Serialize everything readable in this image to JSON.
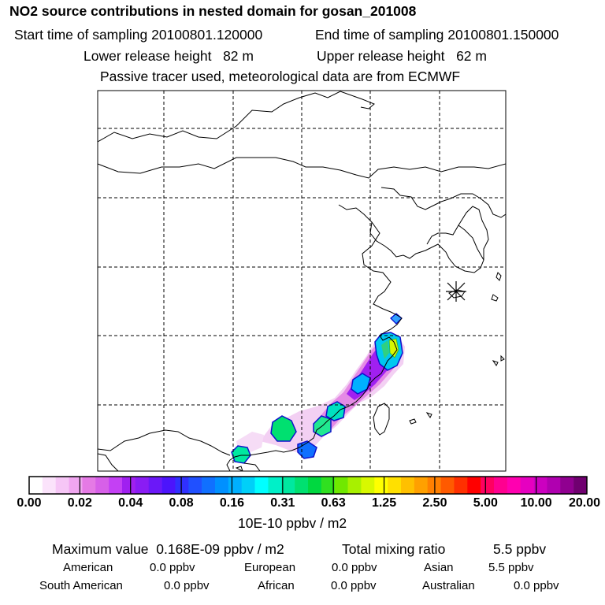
{
  "header": {
    "title": "NO2 source contributions in nested domain for gosan_201008",
    "start_label": "Start time of sampling 20100801.120000",
    "end_label": "End time of sampling 20100801.150000",
    "lower_label": "Lower release height",
    "lower_value": "82 m",
    "upper_label": "Upper release height",
    "upper_value": "62 m",
    "tracer_note": "Passive tracer used, meteorological data are from ECMWF"
  },
  "map": {
    "receptor_marker": "station-star-icon",
    "plume_levels": [
      0.02,
      0.04,
      0.08,
      0.16,
      0.31,
      0.63,
      1.25
    ]
  },
  "colorbar": {
    "ticks": [
      "0.00",
      "0.02",
      "0.04",
      "0.08",
      "0.16",
      "0.31",
      "0.63",
      "1.25",
      "2.50",
      "5.00",
      "10.00",
      "20.00"
    ],
    "colors": [
      "#ffffff",
      "#fbe3fb",
      "#f6c6f6",
      "#f0a6f0",
      "#e57ae5",
      "#d760e8",
      "#c440f4",
      "#a020f0",
      "#8a1cf4",
      "#6b18f8",
      "#4c14fc",
      "#3030ff",
      "#2050ff",
      "#1070ff",
      "#0090ff",
      "#00b0ff",
      "#00d0f8",
      "#00ffff",
      "#00f0c8",
      "#00e8a0",
      "#00e070",
      "#00d840",
      "#30e020",
      "#70e800",
      "#a8f000",
      "#d8f800",
      "#ffff00",
      "#ffe000",
      "#ffc000",
      "#ffa000",
      "#ff8000",
      "#ff5a00",
      "#ff3000",
      "#ff0000",
      "#ff0060",
      "#ff0090",
      "#ff00b0",
      "#e600c0",
      "#cc00c0",
      "#b000b0",
      "#900090",
      "#700070"
    ],
    "units": "10E-10 ppbv / m2"
  },
  "stats": {
    "max_label": "Maximum value",
    "max_value": "0.168E-09 ppbv / m2",
    "total_label": "Total mixing ratio",
    "total_value": "5.5 ppbv",
    "regions": [
      {
        "name": "American",
        "value": "0.0 ppbv"
      },
      {
        "name": "European",
        "value": "0.0 ppbv"
      },
      {
        "name": "Asian",
        "value": "5.5 ppbv"
      },
      {
        "name": "South American",
        "value": "0.0 ppbv"
      },
      {
        "name": "African",
        "value": "0.0 ppbv"
      },
      {
        "name": "Australian",
        "value": "0.0 ppbv"
      }
    ]
  }
}
